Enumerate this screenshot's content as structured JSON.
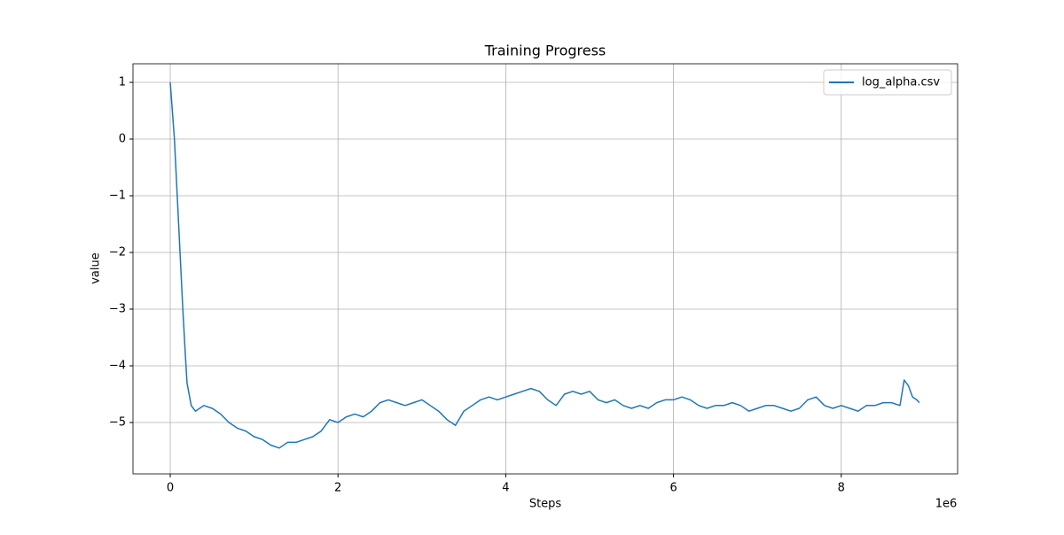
{
  "chart_data": {
    "type": "line",
    "title": "Training Progress",
    "xlabel": "Steps",
    "ylabel": "value",
    "x_offset_label": "1e6",
    "x": [
      0,
      0.05,
      0.1,
      0.15,
      0.18,
      0.2,
      0.25,
      0.3,
      0.4,
      0.5,
      0.6,
      0.7,
      0.8,
      0.9,
      1.0,
      1.1,
      1.2,
      1.3,
      1.4,
      1.5,
      1.6,
      1.7,
      1.8,
      1.9,
      2.0,
      2.1,
      2.2,
      2.3,
      2.4,
      2.5,
      2.6,
      2.7,
      2.8,
      2.9,
      3.0,
      3.1,
      3.2,
      3.3,
      3.4,
      3.5,
      3.6,
      3.7,
      3.8,
      3.9,
      4.0,
      4.1,
      4.2,
      4.3,
      4.4,
      4.5,
      4.6,
      4.7,
      4.8,
      4.9,
      5.0,
      5.1,
      5.2,
      5.3,
      5.4,
      5.5,
      5.6,
      5.7,
      5.8,
      5.9,
      6.0,
      6.1,
      6.2,
      6.3,
      6.4,
      6.5,
      6.6,
      6.7,
      6.8,
      6.9,
      7.0,
      7.1,
      7.2,
      7.3,
      7.4,
      7.5,
      7.6,
      7.7,
      7.8,
      7.9,
      8.0,
      8.1,
      8.2,
      8.3,
      8.4,
      8.5,
      8.6,
      8.7,
      8.75,
      8.8,
      8.85,
      8.9,
      8.93
    ],
    "series": [
      {
        "name": "log_alpha.csv",
        "color": "#1f77b4",
        "values": [
          1.0,
          0.0,
          -1.5,
          -3.0,
          -3.8,
          -4.3,
          -4.7,
          -4.8,
          -4.7,
          -4.75,
          -4.85,
          -5.0,
          -5.1,
          -5.15,
          -5.25,
          -5.3,
          -5.4,
          -5.45,
          -5.35,
          -5.35,
          -5.3,
          -5.25,
          -5.15,
          -4.95,
          -5.0,
          -4.9,
          -4.85,
          -4.9,
          -4.8,
          -4.65,
          -4.6,
          -4.65,
          -4.7,
          -4.65,
          -4.6,
          -4.7,
          -4.8,
          -4.95,
          -5.05,
          -4.8,
          -4.7,
          -4.6,
          -4.55,
          -4.6,
          -4.55,
          -4.5,
          -4.45,
          -4.4,
          -4.45,
          -4.6,
          -4.7,
          -4.5,
          -4.45,
          -4.5,
          -4.45,
          -4.6,
          -4.65,
          -4.6,
          -4.7,
          -4.75,
          -4.7,
          -4.75,
          -4.65,
          -4.6,
          -4.6,
          -4.55,
          -4.6,
          -4.7,
          -4.75,
          -4.7,
          -4.7,
          -4.65,
          -4.7,
          -4.8,
          -4.75,
          -4.7,
          -4.7,
          -4.75,
          -4.8,
          -4.75,
          -4.6,
          -4.55,
          -4.7,
          -4.75,
          -4.7,
          -4.75,
          -4.8,
          -4.7,
          -4.7,
          -4.65,
          -4.65,
          -4.7,
          -4.25,
          -4.35,
          -4.55,
          -4.6,
          -4.65
        ]
      }
    ],
    "xlim": [
      -0.444,
      9.387
    ],
    "xticks": [
      0,
      2,
      4,
      6,
      8
    ],
    "ylim": [
      -5.906,
      1.328
    ],
    "yticks": [
      1,
      0,
      {
        "value": -1,
        "label": "−1"
      },
      {
        "value": -2,
        "label": "−2"
      },
      {
        "value": -3,
        "label": "−3"
      },
      {
        "value": -4,
        "label": "−4"
      },
      {
        "value": -5,
        "label": "−5"
      }
    ],
    "grid": true,
    "legend": "upper right"
  }
}
